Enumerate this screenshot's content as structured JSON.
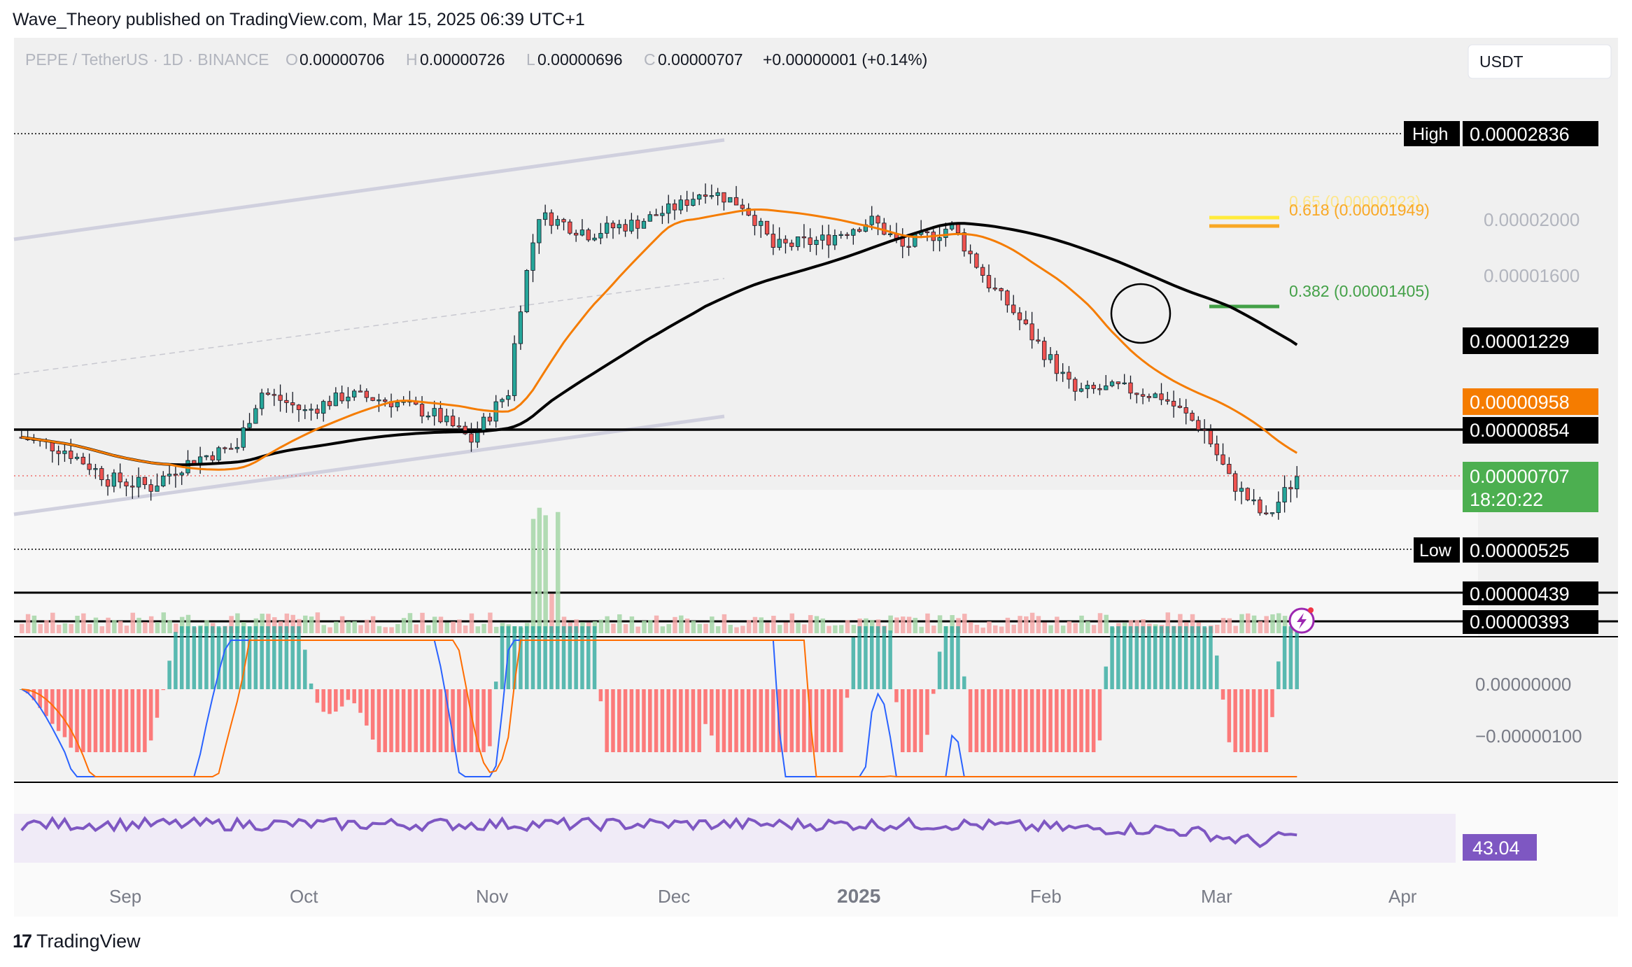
{
  "header": {
    "text": "Wave_Theory published on TradingView.com, Mar 15, 2025 06:39 UTC+1"
  },
  "legend": {
    "symbol": "PEPE / TetherUS · 1D · BINANCE",
    "o_label": "O",
    "o_value": "0.00000706",
    "h_label": "H",
    "h_value": "0.00000726",
    "l_label": "L",
    "l_value": "0.00000696",
    "c_label": "C",
    "c_value": "0.00000707",
    "change": "+0.00000001 (+0.14%)"
  },
  "currency_button": "USDT",
  "price_labels": {
    "high_tag": "High",
    "high_value": "0.00002836",
    "low_tag": "Low",
    "low_value": "0.00000525",
    "ma200": "0.00001229",
    "ma50": "0.00000958",
    "support": "0.00000854",
    "last": "0.00000707",
    "countdown": "18:20:22",
    "vol_top": "0.00000439",
    "vol_bottom": "0.00000393"
  },
  "fib": {
    "f065": "0.65 (0.00002023)",
    "f0618": "0.618 (0.00001949)",
    "f0382": "0.382 (0.00001405)"
  },
  "price_axis": [
    "0.00002000",
    "0.00001600"
  ],
  "macd_axis": [
    "0.00000000",
    "−0.00000100"
  ],
  "rsi_value": "43.04",
  "time_axis": [
    "Sep",
    "Oct",
    "Nov",
    "Dec",
    "2025",
    "Feb",
    "Mar",
    "Apr"
  ],
  "footer": {
    "brand": "TradingView"
  },
  "colors": {
    "up": "#26a69a",
    "down": "#ef5350",
    "ma50": "#f57c00",
    "ma200": "#000000",
    "fib065": "#ffeb3b",
    "fib0618": "#f9a825",
    "fib0382": "#43a047",
    "rsi": "#7e57c2",
    "macd": "#2962ff",
    "signal": "#ff6d00",
    "last": "#4caf50"
  },
  "chart_data": {
    "type": "candlestick",
    "symbol": "PEPE/USDT",
    "interval": "1D",
    "period_high": 2.836e-05,
    "period_low": 5.25e-06,
    "last_close": 7.07e-06,
    "ma_200_last": 1.229e-05,
    "ma_50_last": 9.58e-06,
    "support_level": 8.54e-06,
    "fib_levels": [
      {
        "ratio": 0.65,
        "price": 2.023e-05
      },
      {
        "ratio": 0.618,
        "price": 1.949e-05
      },
      {
        "ratio": 0.382,
        "price": 1.405e-05
      }
    ],
    "close_path": [
      [
        "2024-08-20",
        8.3e-06
      ],
      [
        "2024-08-27",
        7.9e-06
      ],
      [
        "2024-09-03",
        7e-06
      ],
      [
        "2024-09-10",
        6.8e-06
      ],
      [
        "2024-09-17",
        7.6e-06
      ],
      [
        "2024-09-24",
        8e-06
      ],
      [
        "2024-09-28",
        1e-05
      ],
      [
        "2024-10-05",
        9.2e-06
      ],
      [
        "2024-10-12",
        9.9e-06
      ],
      [
        "2024-10-19",
        9.6e-06
      ],
      [
        "2024-10-26",
        9.1e-06
      ],
      [
        "2024-11-01",
        8.2e-06
      ],
      [
        "2024-11-07",
        1e-05
      ],
      [
        "2024-11-12",
        2.05e-05
      ],
      [
        "2024-11-20",
        1.9e-05
      ],
      [
        "2024-11-28",
        1.98e-05
      ],
      [
        "2024-12-05",
        2.15e-05
      ],
      [
        "2024-12-09",
        2.3e-05
      ],
      [
        "2024-12-15",
        2.15e-05
      ],
      [
        "2024-12-20",
        1.8e-05
      ],
      [
        "2024-12-28",
        1.85e-05
      ],
      [
        "2025-01-05",
        2e-05
      ],
      [
        "2025-01-10",
        1.8e-05
      ],
      [
        "2025-01-18",
        1.95e-05
      ],
      [
        "2025-01-24",
        1.55e-05
      ],
      [
        "2025-01-31",
        1.25e-05
      ],
      [
        "2025-02-07",
        1e-05
      ],
      [
        "2025-02-14",
        1.02e-05
      ],
      [
        "2025-02-21",
        9.8e-06
      ],
      [
        "2025-02-28",
        8.5e-06
      ],
      [
        "2025-03-04",
        7e-06
      ],
      [
        "2025-03-10",
        6e-06
      ],
      [
        "2025-03-15",
        7.07e-06
      ]
    ],
    "rsi_last": 43.04,
    "xlabels": [
      "Sep",
      "Oct",
      "Nov",
      "Dec",
      "2025",
      "Feb",
      "Mar",
      "Apr"
    ]
  }
}
